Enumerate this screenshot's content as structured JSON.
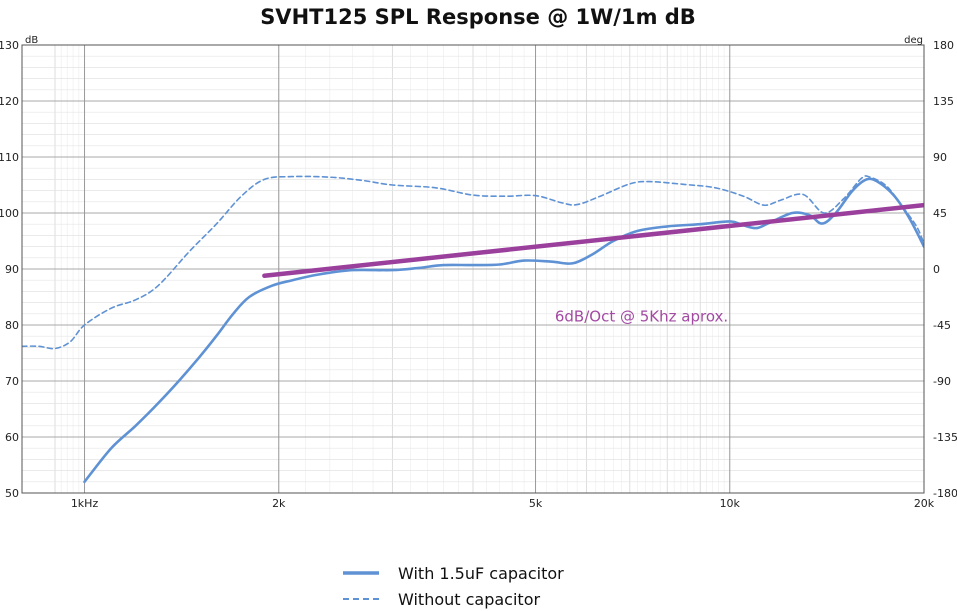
{
  "chart_data": {
    "type": "line",
    "title": "SVHT125 SPL Response @ 1W/1m dB",
    "x_scale": "log",
    "xlim": [
      800,
      20000
    ],
    "x_ticks": [
      {
        "value": 1000,
        "label": "1kHz"
      },
      {
        "value": 2000,
        "label": "2k"
      },
      {
        "value": 5000,
        "label": "5k"
      },
      {
        "value": 10000,
        "label": "10k"
      },
      {
        "value": 20000,
        "label": "20k"
      }
    ],
    "y_left": {
      "unit": "dB",
      "range": [
        50,
        130
      ],
      "ticks": [
        "50",
        "60",
        "70",
        "80",
        "90",
        "100",
        "110",
        "120",
        "130"
      ]
    },
    "y_right": {
      "unit": "deg",
      "range": [
        -180,
        180
      ],
      "ticks": [
        "-180",
        "-135",
        "-90",
        "-45",
        "0",
        "45",
        "90",
        "135",
        "180"
      ]
    },
    "grid": true,
    "legend_position": "bottom-center",
    "series": [
      {
        "name": "With 1.5uF capacitor",
        "style": "solid",
        "color": "#5f92d4",
        "points": [
          [
            1000,
            52
          ],
          [
            1100,
            58
          ],
          [
            1200,
            62
          ],
          [
            1300,
            66
          ],
          [
            1400,
            70
          ],
          [
            1500,
            74
          ],
          [
            1600,
            78
          ],
          [
            1700,
            82
          ],
          [
            1800,
            85
          ],
          [
            1950,
            87
          ],
          [
            2100,
            88
          ],
          [
            2300,
            89
          ],
          [
            2600,
            89.8
          ],
          [
            3000,
            89.8
          ],
          [
            3300,
            90.2
          ],
          [
            3600,
            90.7
          ],
          [
            4000,
            90.7
          ],
          [
            4400,
            90.8
          ],
          [
            4800,
            91.5
          ],
          [
            5300,
            91.3
          ],
          [
            5700,
            91
          ],
          [
            6100,
            92.5
          ],
          [
            6600,
            95
          ],
          [
            7200,
            96.8
          ],
          [
            8000,
            97.6
          ],
          [
            9000,
            98
          ],
          [
            10000,
            98.5
          ],
          [
            10500,
            97.8
          ],
          [
            11000,
            97.3
          ],
          [
            11500,
            98.2
          ],
          [
            12500,
            100
          ],
          [
            13300,
            99.6
          ],
          [
            13900,
            98.1
          ],
          [
            14600,
            100
          ],
          [
            15500,
            104
          ],
          [
            16300,
            106
          ],
          [
            17000,
            105.5
          ],
          [
            18000,
            103
          ],
          [
            19000,
            99
          ],
          [
            20000,
            94
          ]
        ]
      },
      {
        "name": "Without capacitor",
        "style": "dashed",
        "color": "#5f92d4",
        "points": [
          [
            800,
            76.2
          ],
          [
            850,
            76.2
          ],
          [
            900,
            75.8
          ],
          [
            950,
            77
          ],
          [
            1000,
            80
          ],
          [
            1100,
            83
          ],
          [
            1200,
            84.5
          ],
          [
            1300,
            87
          ],
          [
            1450,
            93
          ],
          [
            1600,
            98
          ],
          [
            1750,
            103
          ],
          [
            1900,
            106
          ],
          [
            2100,
            106.5
          ],
          [
            2400,
            106.4
          ],
          [
            2700,
            105.8
          ],
          [
            3000,
            105
          ],
          [
            3500,
            104.5
          ],
          [
            4000,
            103.2
          ],
          [
            4500,
            103
          ],
          [
            5000,
            103.1
          ],
          [
            5500,
            101.8
          ],
          [
            5800,
            101.5
          ],
          [
            6300,
            103
          ],
          [
            7000,
            105.2
          ],
          [
            7500,
            105.6
          ],
          [
            8500,
            105.1
          ],
          [
            9500,
            104.5
          ],
          [
            10500,
            103
          ],
          [
            11300,
            101.4
          ],
          [
            12000,
            102.3
          ],
          [
            13000,
            103.3
          ],
          [
            14000,
            100
          ],
          [
            15000,
            102.5
          ],
          [
            16000,
            106.2
          ],
          [
            16500,
            106.4
          ],
          [
            17500,
            104.8
          ],
          [
            18500,
            101.2
          ],
          [
            19500,
            97.5
          ],
          [
            20000,
            94.5
          ]
        ]
      },
      {
        "name": "",
        "style": "solid",
        "color": "#9b3f9c",
        "points": [
          [
            1900,
            88.8
          ],
          [
            20000,
            101.4
          ]
        ]
      }
    ],
    "annotations": [
      {
        "text": "6dB/Oct @ 5Khz aprox.",
        "x": 5000,
        "y": 81.5,
        "color": "#a34aa3"
      }
    ]
  }
}
